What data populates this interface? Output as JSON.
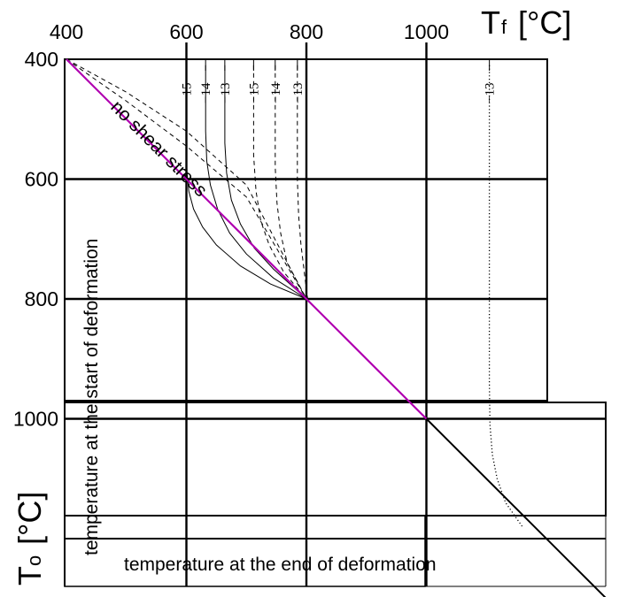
{
  "chart_data": {
    "type": "line",
    "x_axis": {
      "title": "T",
      "subscript": "f",
      "unit": "[°C]",
      "ticks": [
        400,
        600,
        800,
        1000
      ],
      "range": [
        400,
        1300
      ],
      "position": "top"
    },
    "y_axis": {
      "title": "T",
      "subscript": "o",
      "unit": "[°C]",
      "ticks": [
        400,
        600,
        800,
        1000
      ],
      "range": [
        400,
        1300
      ],
      "inverted": true
    },
    "x_description": "temperature at the end of deformation",
    "y_description": "temperature at the start of deformation",
    "annotation": "no shear stress",
    "grid": true,
    "colors": {
      "diagonal": "#b000b0",
      "lines": "#000000"
    },
    "diagonal": {
      "x": [
        400,
        1000
      ],
      "y": [
        400,
        1000
      ]
    },
    "diagonal_extension": {
      "x": [
        1000,
        1300
      ],
      "y": [
        1000,
        1300
      ]
    },
    "series": [
      {
        "label": "−15",
        "style": "solid",
        "x": [
          600,
          600,
          601,
          604,
          612,
          627,
          650,
          690,
          740,
          800
        ],
        "y": [
          520,
          560,
          590,
          620,
          650,
          680,
          710,
          745,
          775,
          800
        ]
      },
      {
        "label": "−14",
        "style": "solid",
        "x": [
          632,
          632,
          634,
          640,
          652,
          672,
          700,
          745,
          800
        ],
        "y": [
          410,
          520,
          570,
          610,
          650,
          690,
          725,
          765,
          800
        ]
      },
      {
        "label": "−13",
        "style": "solid",
        "x": [
          664,
          664,
          667,
          675,
          690,
          713,
          745,
          800
        ],
        "y": [
          410,
          540,
          590,
          635,
          675,
          715,
          750,
          800
        ]
      },
      {
        "label": "−15",
        "style": "dashed",
        "x": [
          712,
          712,
          716,
          724,
          738,
          762,
          800
        ],
        "y": [
          410,
          560,
          620,
          670,
          710,
          755,
          800
        ]
      },
      {
        "label": "−14",
        "style": "dashed",
        "x": [
          748,
          748,
          751,
          757,
          768,
          800
        ],
        "y": [
          410,
          580,
          640,
          690,
          740,
          800
        ]
      },
      {
        "label": "−13",
        "style": "dashed",
        "x": [
          785,
          785,
          787,
          791,
          797,
          802
        ],
        "y": [
          410,
          600,
          660,
          710,
          760,
          800
        ]
      },
      {
        "label": "−13",
        "style": "dotted",
        "x": [
          1105,
          1105,
          1106,
          1110,
          1118,
          1132,
          1160
        ],
        "y": [
          410,
          940,
          1010,
          1060,
          1100,
          1140,
          1180
        ]
      },
      {
        "label": "",
        "style": "dashed",
        "x": [
          400,
          500,
          600,
          700,
          800
        ],
        "y": [
          400,
          470,
          545,
          630,
          800
        ]
      },
      {
        "label": "",
        "style": "dashed",
        "x": [
          400,
          500,
          600,
          700,
          800
        ],
        "y": [
          400,
          455,
          520,
          610,
          800
        ]
      }
    ]
  }
}
